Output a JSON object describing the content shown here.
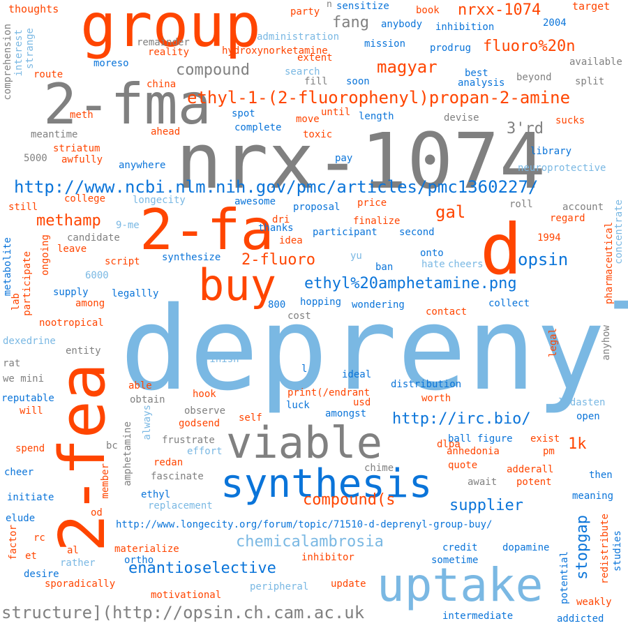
{
  "palette": {
    "orange": "#ff4500",
    "gray": "#808080",
    "blue": "#0a74d9",
    "lightblue": "#7ab8e3"
  },
  "words": [
    {
      "text": "deprenyl",
      "color": "lightblue"
    },
    {
      "text": "nrx-1074",
      "color": "gray"
    },
    {
      "text": "group",
      "color": "orange"
    },
    {
      "text": "2-fma",
      "color": "gray"
    },
    {
      "text": "2-fa",
      "color": "orange"
    },
    {
      "text": "d",
      "color": "orange"
    },
    {
      "text": "2-fea",
      "color": "orange"
    },
    {
      "text": "buy",
      "color": "orange"
    },
    {
      "text": "viable",
      "color": "gray"
    },
    {
      "text": "synthesis",
      "color": "blue"
    },
    {
      "text": "uptake",
      "color": "lightblue"
    },
    {
      "text": "ethyl-1-(2-fluorophenyl)propan-2-amine",
      "color": "orange"
    },
    {
      "text": "http://www.ncbi.nlm.nih.gov/pmc/articles/pmc1360227/",
      "color": "blue"
    },
    {
      "text": "structure](http://opsin.ch.cam.ac.uk",
      "color": "gray"
    },
    {
      "text": "compound",
      "color": "gray"
    },
    {
      "text": "magyar",
      "color": "orange"
    },
    {
      "text": "fluoro%20n",
      "color": "orange"
    },
    {
      "text": "nrxx-1074",
      "color": "orange"
    },
    {
      "text": "fang",
      "color": "gray"
    },
    {
      "text": "3'rd",
      "color": "gray"
    },
    {
      "text": "gal",
      "color": "orange"
    },
    {
      "text": "methamp",
      "color": "orange"
    },
    {
      "text": "opsin",
      "color": "blue"
    },
    {
      "text": "2-fluoro",
      "color": "orange"
    },
    {
      "text": "ethyl%20amphetamine.png",
      "color": "blue"
    },
    {
      "text": "http://irc.bio/",
      "color": "blue"
    },
    {
      "text": "1k",
      "color": "orange"
    },
    {
      "text": "compound(s",
      "color": "orange"
    },
    {
      "text": "supplier",
      "color": "blue"
    },
    {
      "text": "chemicalambrosia",
      "color": "lightblue"
    },
    {
      "text": "enantioselective",
      "color": "blue"
    },
    {
      "text": "stopgap",
      "color": "blue"
    },
    {
      "text": "http://www.longecity.org/forum/topic/71510-d-deprenyl-group-buy/",
      "color": "blue"
    },
    {
      "text": "thoughts",
      "color": "orange"
    },
    {
      "text": "party",
      "color": "orange"
    },
    {
      "text": "n",
      "color": "gray"
    },
    {
      "text": "sensitize",
      "color": "blue"
    },
    {
      "text": "book",
      "color": "orange"
    },
    {
      "text": "target",
      "color": "orange"
    },
    {
      "text": "2004",
      "color": "blue"
    },
    {
      "text": "anybody",
      "color": "blue"
    },
    {
      "text": "inhibition",
      "color": "blue"
    },
    {
      "text": "administration",
      "color": "lightblue"
    },
    {
      "text": "remainder",
      "color": "gray"
    },
    {
      "text": "mission",
      "color": "blue"
    },
    {
      "text": "prodrug",
      "color": "blue"
    },
    {
      "text": "available",
      "color": "gray"
    },
    {
      "text": "hydroxynorketamine",
      "color": "orange"
    },
    {
      "text": "reality",
      "color": "orange"
    },
    {
      "text": "extent",
      "color": "orange"
    },
    {
      "text": "moreso",
      "color": "blue"
    },
    {
      "text": "search",
      "color": "lightblue"
    },
    {
      "text": "route",
      "color": "orange"
    },
    {
      "text": "best",
      "color": "blue"
    },
    {
      "text": "beyond",
      "color": "gray"
    },
    {
      "text": "split",
      "color": "gray"
    },
    {
      "text": "fill",
      "color": "gray"
    },
    {
      "text": "soon",
      "color": "blue"
    },
    {
      "text": "analysis",
      "color": "blue"
    },
    {
      "text": "china",
      "color": "orange"
    },
    {
      "text": "meth",
      "color": "orange"
    },
    {
      "text": "spot",
      "color": "blue"
    },
    {
      "text": "until",
      "color": "orange"
    },
    {
      "text": "length",
      "color": "blue"
    },
    {
      "text": "move",
      "color": "orange"
    },
    {
      "text": "devise",
      "color": "gray"
    },
    {
      "text": "sucks",
      "color": "orange"
    },
    {
      "text": "complete",
      "color": "blue"
    },
    {
      "text": "meantime",
      "color": "gray"
    },
    {
      "text": "ahead",
      "color": "orange"
    },
    {
      "text": "toxic",
      "color": "orange"
    },
    {
      "text": "striatum",
      "color": "orange"
    },
    {
      "text": "5000",
      "color": "gray"
    },
    {
      "text": "awfully",
      "color": "orange"
    },
    {
      "text": "pay",
      "color": "blue"
    },
    {
      "text": "library",
      "color": "blue"
    },
    {
      "text": "anywhere",
      "color": "blue"
    },
    {
      "text": "neuroprotective",
      "color": "lightblue"
    },
    {
      "text": "college",
      "color": "orange"
    },
    {
      "text": "longecity",
      "color": "lightblue"
    },
    {
      "text": "price",
      "color": "orange"
    },
    {
      "text": "roll",
      "color": "gray"
    },
    {
      "text": "account",
      "color": "gray"
    },
    {
      "text": "still",
      "color": "orange"
    },
    {
      "text": "awesome",
      "color": "blue"
    },
    {
      "text": "dri",
      "color": "orange"
    },
    {
      "text": "proposal",
      "color": "blue"
    },
    {
      "text": "regard",
      "color": "orange"
    },
    {
      "text": "finalize",
      "color": "orange"
    },
    {
      "text": "9-me",
      "color": "lightblue"
    },
    {
      "text": "thanks",
      "color": "blue"
    },
    {
      "text": "participant",
      "color": "blue"
    },
    {
      "text": "second",
      "color": "blue"
    },
    {
      "text": "candidate",
      "color": "gray"
    },
    {
      "text": "idea",
      "color": "orange"
    },
    {
      "text": "1994",
      "color": "orange"
    },
    {
      "text": "leave",
      "color": "orange"
    },
    {
      "text": "onto",
      "color": "blue"
    },
    {
      "text": "synthesize",
      "color": "blue"
    },
    {
      "text": "yu",
      "color": "lightblue"
    },
    {
      "text": "script",
      "color": "orange"
    },
    {
      "text": "ban",
      "color": "blue"
    },
    {
      "text": "hate",
      "color": "lightblue"
    },
    {
      "text": "cheers",
      "color": "lightblue"
    },
    {
      "text": "6000",
      "color": "lightblue"
    },
    {
      "text": "supply",
      "color": "blue"
    },
    {
      "text": "legallly",
      "color": "blue"
    },
    {
      "text": "among",
      "color": "orange"
    },
    {
      "text": "800",
      "color": "blue"
    },
    {
      "text": "hopping",
      "color": "blue"
    },
    {
      "text": "wondering",
      "color": "blue"
    },
    {
      "text": "collect",
      "color": "blue"
    },
    {
      "text": "cost",
      "color": "gray"
    },
    {
      "text": "contact",
      "color": "orange"
    },
    {
      "text": "nootropical",
      "color": "orange"
    },
    {
      "text": "dexedrine",
      "color": "lightblue"
    },
    {
      "text": "entity",
      "color": "gray"
    },
    {
      "text": "legal",
      "color": "orange"
    },
    {
      "text": "rat",
      "color": "gray"
    },
    {
      "text": "finish",
      "color": "lightblue"
    },
    {
      "text": "we mini",
      "color": "gray"
    },
    {
      "text": "l",
      "color": "blue"
    },
    {
      "text": "ideal",
      "color": "blue"
    },
    {
      "text": "able",
      "color": "orange"
    },
    {
      "text": "distribution",
      "color": "blue"
    },
    {
      "text": "hook",
      "color": "orange"
    },
    {
      "text": "reputable",
      "color": "blue"
    },
    {
      "text": "obtain",
      "color": "gray"
    },
    {
      "text": "print(/endrant",
      "color": "orange"
    },
    {
      "text": "usd",
      "color": "orange"
    },
    {
      "text": "worth",
      "color": "orange"
    },
    {
      "text": "will",
      "color": "orange"
    },
    {
      "text": "luck",
      "color": "blue"
    },
    {
      "text": "amongst",
      "color": "blue"
    },
    {
      "text": "ladasten",
      "color": "lightblue"
    },
    {
      "text": "observe",
      "color": "gray"
    },
    {
      "text": "open",
      "color": "blue"
    },
    {
      "text": "godsend",
      "color": "orange"
    },
    {
      "text": "self",
      "color": "orange"
    },
    {
      "text": "frustrate",
      "color": "gray"
    },
    {
      "text": "ball",
      "color": "blue"
    },
    {
      "text": "figure",
      "color": "blue"
    },
    {
      "text": "exist",
      "color": "orange"
    },
    {
      "text": "spend",
      "color": "orange"
    },
    {
      "text": "bc",
      "color": "gray"
    },
    {
      "text": "effort",
      "color": "lightblue"
    },
    {
      "text": "dlpa",
      "color": "orange"
    },
    {
      "text": "anhedonia",
      "color": "orange"
    },
    {
      "text": "pm",
      "color": "orange"
    },
    {
      "text": "redan",
      "color": "orange"
    },
    {
      "text": "chime",
      "color": "gray"
    },
    {
      "text": "cheer",
      "color": "blue"
    },
    {
      "text": "quote",
      "color": "orange"
    },
    {
      "text": "adderall",
      "color": "orange"
    },
    {
      "text": "then",
      "color": "blue"
    },
    {
      "text": "fascinate",
      "color": "gray"
    },
    {
      "text": "await",
      "color": "gray"
    },
    {
      "text": "potent",
      "color": "orange"
    },
    {
      "text": "initiate",
      "color": "blue"
    },
    {
      "text": "ethyl",
      "color": "blue"
    },
    {
      "text": "meaning",
      "color": "blue"
    },
    {
      "text": "replacement",
      "color": "lightblue"
    },
    {
      "text": "od",
      "color": "orange"
    },
    {
      "text": "elude",
      "color": "blue"
    },
    {
      "text": "rc",
      "color": "orange"
    },
    {
      "text": "materialize",
      "color": "orange"
    },
    {
      "text": "credit",
      "color": "blue"
    },
    {
      "text": "dopamine",
      "color": "blue"
    },
    {
      "text": "al",
      "color": "orange"
    },
    {
      "text": "et",
      "color": "orange"
    },
    {
      "text": "ortho",
      "color": "blue"
    },
    {
      "text": "inhibitor",
      "color": "orange"
    },
    {
      "text": "rather",
      "color": "lightblue"
    },
    {
      "text": "sometime",
      "color": "blue"
    },
    {
      "text": "desire",
      "color": "blue"
    },
    {
      "text": "sporadically",
      "color": "orange"
    },
    {
      "text": "peripheral",
      "color": "lightblue"
    },
    {
      "text": "update",
      "color": "orange"
    },
    {
      "text": "motivational",
      "color": "orange"
    },
    {
      "text": "weakly",
      "color": "orange"
    },
    {
      "text": "intermediate",
      "color": "blue"
    },
    {
      "text": "addicted",
      "color": "blue"
    },
    {
      "text": "comprehension",
      "color": "gray"
    },
    {
      "text": "interest",
      "color": "lightblue"
    },
    {
      "text": "strange",
      "color": "lightblue"
    },
    {
      "text": "metabolite",
      "color": "blue"
    },
    {
      "text": "lab",
      "color": "orange"
    },
    {
      "text": "participate",
      "color": "orange"
    },
    {
      "text": "ongoing",
      "color": "orange"
    },
    {
      "text": "concentrate",
      "color": "lightblue"
    },
    {
      "text": "pharmaceutical",
      "color": "orange"
    },
    {
      "text": "anyhow",
      "color": "gray"
    },
    {
      "text": "always",
      "color": "lightblue"
    },
    {
      "text": "amphetamine",
      "color": "gray"
    },
    {
      "text": "member",
      "color": "orange"
    },
    {
      "text": "factor",
      "color": "orange"
    },
    {
      "text": "potential",
      "color": "blue"
    },
    {
      "text": "redistribute",
      "color": "orange"
    },
    {
      "text": "studies",
      "color": "blue"
    }
  ]
}
